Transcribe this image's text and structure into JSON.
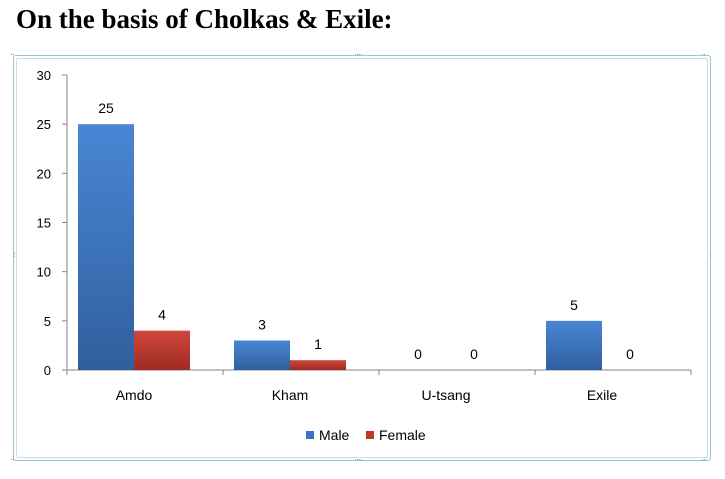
{
  "page": {
    "heading": "On the basis of Cholkas & Exile:"
  },
  "colors": {
    "male": "#3a75c4",
    "female": "#c0392f",
    "axis": "#868686"
  },
  "chart_data": {
    "type": "bar",
    "title": "",
    "xlabel": "",
    "ylabel": "",
    "categories": [
      "Amdo",
      "Kham",
      "U-tsang",
      "Exile"
    ],
    "series": [
      {
        "name": "Male",
        "values": [
          25,
          3,
          0,
          5
        ]
      },
      {
        "name": "Female",
        "values": [
          4,
          1,
          0,
          0
        ]
      }
    ],
    "ylim": [
      0,
      30
    ],
    "yticks": [
      0,
      5,
      10,
      15,
      20,
      25,
      30
    ],
    "grid": false,
    "legend": "bottom-center",
    "data_labels": true
  }
}
